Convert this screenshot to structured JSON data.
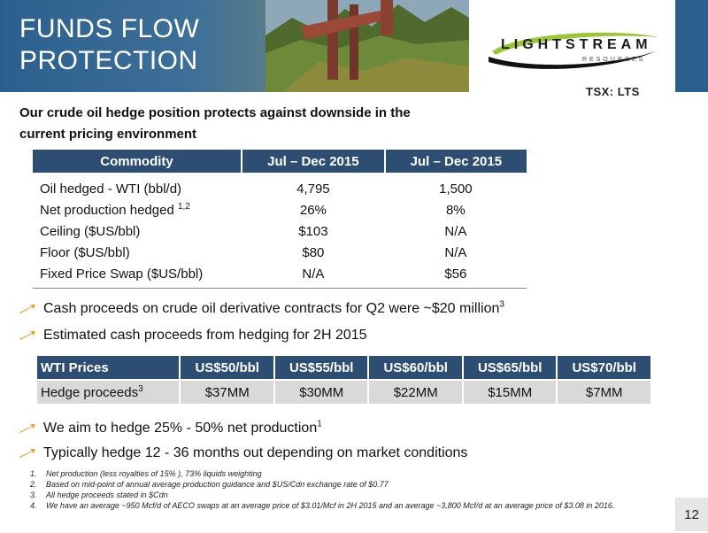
{
  "header": {
    "title_lines": [
      "FUNDS FLOW",
      "PROTECTION"
    ],
    "logo_name": "LIGHTSTREAM",
    "logo_sub": "RESOURCES",
    "ticker": "TSX: LTS"
  },
  "subtitle_lines": [
    "Our crude oil hedge position protects against downside in the",
    "current pricing environment"
  ],
  "hedge_table": {
    "headers": [
      "Commodity",
      "Jul – Dec 2015",
      "Jul – Dec 2015"
    ],
    "rows": [
      {
        "label": "Oil hedged - WTI (bbl/d)",
        "sup": "",
        "v1": "4,795",
        "v2": "1,500"
      },
      {
        "label": "Net production hedged ",
        "sup": "1,2",
        "v1": "26%",
        "v2": "8%"
      },
      {
        "label": "Ceiling ($US/bbl)",
        "sup": "",
        "v1": "$103",
        "v2": "N/A"
      },
      {
        "label": "Floor ($US/bbl)",
        "sup": "",
        "v1": "$80",
        "v2": "N/A"
      },
      {
        "label": "Fixed Price Swap ($US/bbl)",
        "sup": "",
        "v1": "N/A",
        "v2": "$56"
      }
    ]
  },
  "bullets": [
    {
      "text": "Cash proceeds on crude oil derivative contracts for Q2 were ~$20 million",
      "sup": "3"
    },
    {
      "text": "Estimated cash proceeds from hedging for 2H 2015",
      "sup": ""
    },
    {
      "text": "We aim to hedge 25% - 50% net production",
      "sup": "1"
    },
    {
      "text": "Typically hedge 12 - 36 months out depending on market conditions",
      "sup": ""
    }
  ],
  "price_table": {
    "headers": [
      "WTI Prices",
      "US$50/bbl",
      "US$55/bbl",
      "US$60/bbl",
      "US$65/bbl",
      "US$70/bbl"
    ],
    "row_label": "Hedge proceeds",
    "row_label_sup": "3",
    "values": [
      "$37MM",
      "$30MM",
      "$22MM",
      "$15MM",
      "$7MM"
    ]
  },
  "footnotes": [
    {
      "num": "1.",
      "text": "Net production (less royalties of 15% ), 73% liquids weighting"
    },
    {
      "num": "2.",
      "text": "Based on mid-point of annual average production guidance and $US/Cdn exchange rate of $0.77"
    },
    {
      "num": "3.",
      "text": "All hedge proceeds stated in $Cdn"
    },
    {
      "num": "4.",
      "text": "We have an average ~950 Mcf/d of AECO swaps at an average price of $3.01/Mcf in 2H 2015 and an average ~3,800 Mcf/d at an average price of $3.08 in 2016."
    }
  ],
  "page_number": "12",
  "colors": {
    "banner_blue": "#2d5f8e",
    "table_header": "#2d4e72",
    "row_fill": "#d9d9d9",
    "bullet_arrow": "#e8a33a"
  },
  "icons": {
    "bullet": "arrow-bullet-icon",
    "photo": "pumpjack-photo",
    "logo": "lightstream-swoosh-logo"
  }
}
